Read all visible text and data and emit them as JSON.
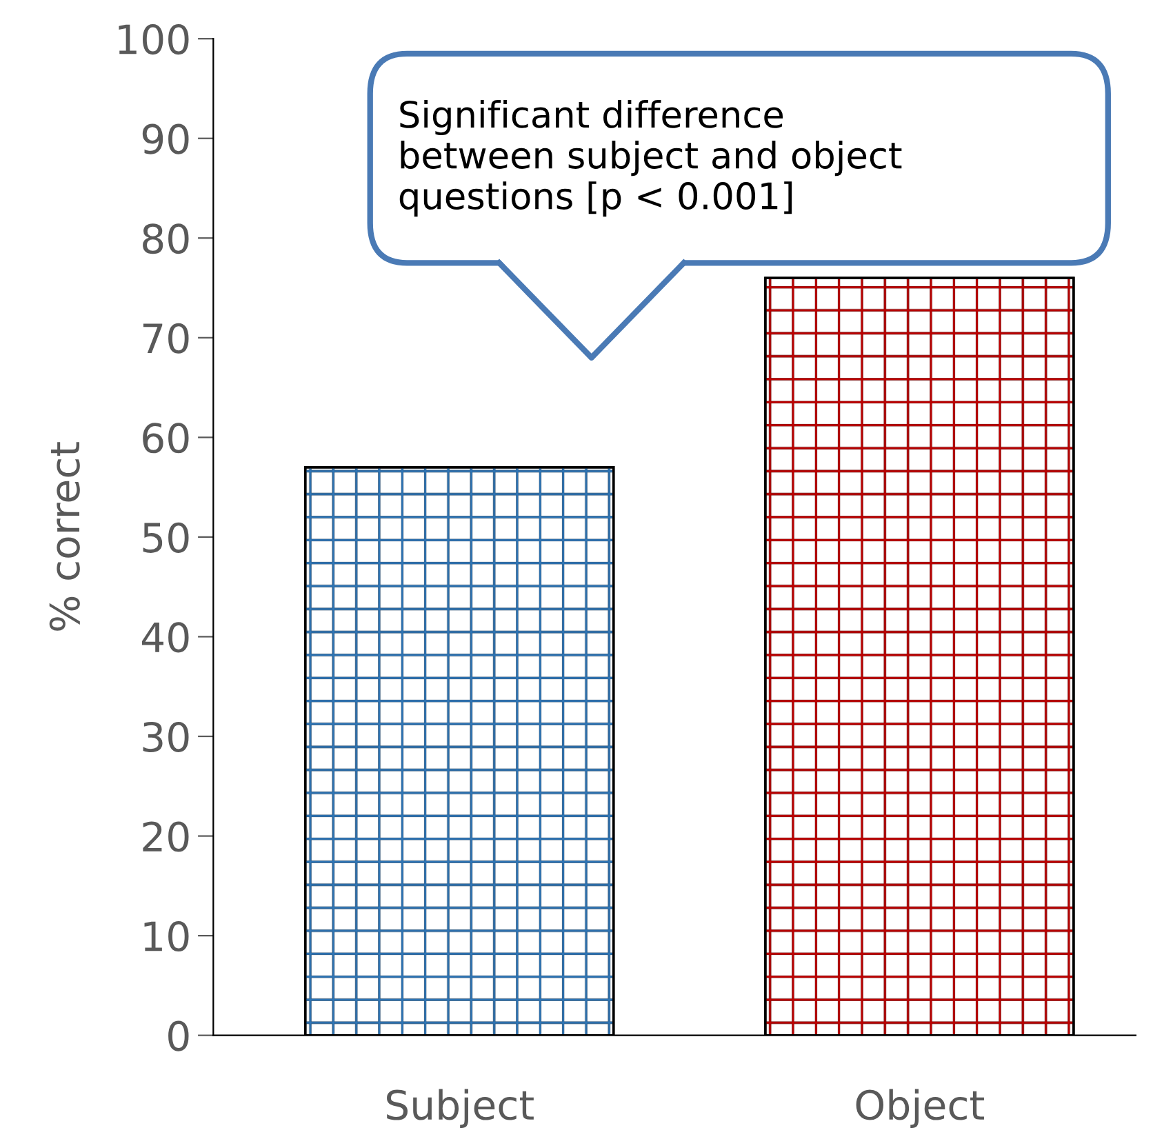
{
  "chart_data": {
    "type": "bar",
    "ylabel": "% correct",
    "categories": [
      "Subject",
      "Object"
    ],
    "values": [
      57,
      76
    ],
    "colors": [
      "#2e75b6",
      "#c00000"
    ],
    "ylim": [
      0,
      100
    ],
    "yticks": [
      0,
      10,
      20,
      30,
      40,
      50,
      60,
      70,
      80,
      90,
      100
    ],
    "grid": false,
    "legend": false,
    "annotations": [
      "Significant difference\nbetween subject and object\nquestions [p < 0.001]"
    ]
  }
}
